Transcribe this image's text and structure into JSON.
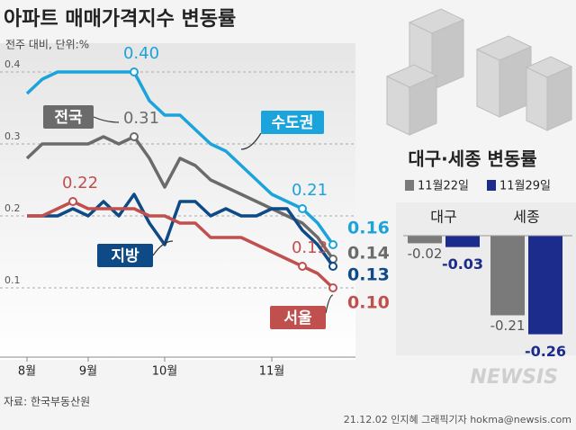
{
  "header": {
    "title": "아파트 매매가격지수 변동률",
    "subtitle": "전주 대비, 단위:%"
  },
  "chart_data": [
    {
      "type": "line",
      "categories": [
        "8월",
        null,
        null,
        null,
        "9월",
        null,
        null,
        null,
        null,
        "10월",
        null,
        null,
        null,
        null,
        null,
        null,
        "11월",
        null,
        null,
        null,
        null
      ],
      "ylim": [
        0,
        0.44
      ],
      "yticks": [
        0.1,
        0.2,
        0.3,
        0.4
      ],
      "grid": true,
      "series": [
        {
          "name": "수도권",
          "color": "#1ba3dc",
          "values": [
            0.37,
            0.39,
            0.4,
            0.4,
            0.4,
            0.4,
            0.4,
            0.4,
            0.36,
            0.34,
            0.34,
            0.32,
            0.3,
            0.29,
            0.27,
            0.25,
            0.23,
            0.22,
            0.21,
            0.19,
            0.16
          ],
          "value_labels": [
            null,
            null,
            null,
            null,
            null,
            null,
            null,
            "0.40",
            null,
            null,
            null,
            null,
            null,
            null,
            null,
            null,
            null,
            null,
            "0.21",
            null,
            "0.16"
          ]
        },
        {
          "name": "전국",
          "color": "#6b6b6b",
          "values": [
            0.28,
            0.3,
            0.3,
            0.3,
            0.3,
            0.31,
            0.3,
            0.31,
            0.28,
            0.24,
            0.28,
            0.27,
            0.25,
            0.24,
            0.23,
            0.22,
            0.21,
            0.2,
            0.19,
            0.17,
            0.14
          ],
          "value_labels": [
            null,
            null,
            null,
            null,
            null,
            null,
            null,
            "0.31",
            null,
            null,
            null,
            null,
            null,
            null,
            null,
            null,
            null,
            null,
            null,
            null,
            "0.14"
          ]
        },
        {
          "name": "지방",
          "color": "#0d4a86",
          "values": [
            0.2,
            0.2,
            0.2,
            0.21,
            0.2,
            0.22,
            0.2,
            0.23,
            0.19,
            0.16,
            0.22,
            0.22,
            0.2,
            0.21,
            0.2,
            0.2,
            0.21,
            0.21,
            0.18,
            0.16,
            0.13
          ],
          "value_labels": [
            null,
            null,
            null,
            null,
            null,
            null,
            null,
            null,
            null,
            null,
            null,
            null,
            null,
            null,
            null,
            null,
            null,
            null,
            null,
            null,
            "0.13"
          ]
        },
        {
          "name": "서울",
          "color": "#c0504d",
          "values": [
            0.2,
            0.2,
            0.21,
            0.22,
            0.21,
            0.21,
            0.21,
            0.21,
            0.2,
            0.2,
            0.19,
            0.19,
            0.17,
            0.17,
            0.17,
            0.16,
            0.15,
            0.14,
            0.13,
            0.12,
            0.1
          ],
          "value_labels": [
            null,
            null,
            null,
            "0.22",
            null,
            null,
            null,
            null,
            null,
            null,
            null,
            null,
            null,
            null,
            null,
            null,
            null,
            null,
            "0.13",
            null,
            "0.10"
          ]
        }
      ]
    },
    {
      "type": "bar",
      "title": "대구·세종 변동률",
      "categories": [
        "대구",
        "세종"
      ],
      "ylim": [
        -0.28,
        0
      ],
      "series": [
        {
          "name": "11월22일",
          "color": "#7a7a7a",
          "values": [
            -0.02,
            -0.21
          ]
        },
        {
          "name": "11월29일",
          "color": "#1c2c8c",
          "values": [
            -0.03,
            -0.26
          ]
        }
      ]
    }
  ],
  "footer": {
    "source": "자료: 한국부동산원",
    "credit": "21.12.02 인지혜 그래픽기자 hokma@newsis.com",
    "logo": "NEWSIS"
  }
}
